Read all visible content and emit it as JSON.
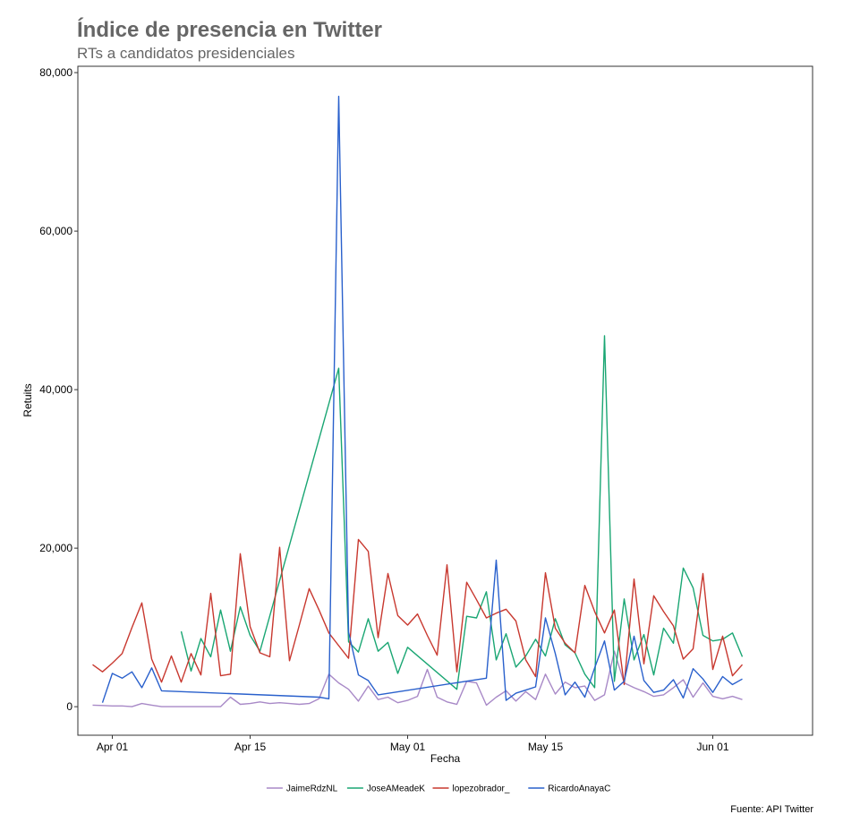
{
  "chart_data": {
    "type": "line",
    "title": "Índice de presencia en Twitter",
    "subtitle": "RTs a candidatos presidenciales",
    "xlabel": "Fecha",
    "ylabel": "Retuits",
    "caption": "Fuente: API Twitter",
    "x_ticks": [
      "Apr 01",
      "Apr 15",
      "May 01",
      "May 15",
      "Jun 01"
    ],
    "y_ticks": [
      "0",
      "20,000",
      "40,000",
      "60,000",
      "80,000"
    ],
    "ylim": [
      -3600,
      80800
    ],
    "legend_position": "bottom",
    "grid": false,
    "series": [
      {
        "name": "JaimeRdzNL",
        "color": "#a889c7",
        "x": [
          "2018-03-30",
          "2018-03-31",
          "2018-04-01",
          "2018-04-02",
          "2018-04-03",
          "2018-04-04",
          "2018-04-05",
          "2018-04-06",
          "2018-04-07",
          "2018-04-08",
          "2018-04-09",
          "2018-04-10",
          "2018-04-11",
          "2018-04-12",
          "2018-04-13",
          "2018-04-14",
          "2018-04-15",
          "2018-04-16",
          "2018-04-17",
          "2018-04-18",
          "2018-04-19",
          "2018-04-20",
          "2018-04-21",
          "2018-04-22",
          "2018-04-23",
          "2018-04-24",
          "2018-04-25",
          "2018-04-26",
          "2018-04-27",
          "2018-04-28",
          "2018-04-29",
          "2018-04-30",
          "2018-05-01",
          "2018-05-02",
          "2018-05-03",
          "2018-05-04",
          "2018-05-05",
          "2018-05-06",
          "2018-05-07",
          "2018-05-08",
          "2018-05-09",
          "2018-05-10",
          "2018-05-11",
          "2018-05-12",
          "2018-05-13",
          "2018-05-14",
          "2018-05-15",
          "2018-05-16",
          "2018-05-17",
          "2018-05-18",
          "2018-05-19",
          "2018-05-20",
          "2018-05-21",
          "2018-05-22",
          "2018-05-23",
          "2018-05-24",
          "2018-05-25",
          "2018-05-26",
          "2018-05-27",
          "2018-05-28",
          "2018-05-29",
          "2018-05-30",
          "2018-05-31",
          "2018-06-01",
          "2018-06-02",
          "2018-06-03",
          "2018-06-04"
        ],
        "values": [
          200,
          150,
          100,
          100,
          0,
          400,
          200,
          0,
          0,
          0,
          0,
          0,
          0,
          0,
          1200,
          300,
          400,
          600,
          400,
          500,
          400,
          300,
          400,
          1000,
          4100,
          3000,
          2200,
          700,
          2600,
          900,
          1200,
          500,
          800,
          1300,
          4700,
          1200,
          600,
          300,
          3200,
          3000,
          200,
          1200,
          2000,
          700,
          1900,
          900,
          4100,
          1600,
          3100,
          2400,
          2600,
          800,
          1500,
          7000,
          3000,
          2400,
          1900,
          1300,
          1500,
          2400,
          3400,
          1200,
          3000,
          1300,
          1000,
          1300,
          900
        ]
      },
      {
        "name": "JoseAMeadeK",
        "color": "#1aa673",
        "x": [
          "2018-04-08",
          "2018-04-09",
          "2018-04-10",
          "2018-04-11",
          "2018-04-12",
          "2018-04-13",
          "2018-04-14",
          "2018-04-15",
          "2018-04-16",
          "2018-04-24",
          "2018-04-25",
          "2018-04-26",
          "2018-04-27",
          "2018-04-28",
          "2018-04-29",
          "2018-04-30",
          "2018-05-01",
          "2018-05-06",
          "2018-05-07",
          "2018-05-08",
          "2018-05-09",
          "2018-05-10",
          "2018-05-11",
          "2018-05-12",
          "2018-05-13",
          "2018-05-14",
          "2018-05-15",
          "2018-05-16",
          "2018-05-17",
          "2018-05-18",
          "2018-05-19",
          "2018-05-20",
          "2018-05-21",
          "2018-05-22",
          "2018-05-23",
          "2018-05-24",
          "2018-05-25",
          "2018-05-26",
          "2018-05-27",
          "2018-05-28",
          "2018-05-29",
          "2018-05-30",
          "2018-05-31",
          "2018-06-01",
          "2018-06-02",
          "2018-06-03",
          "2018-06-04"
        ],
        "values": [
          9500,
          4500,
          8600,
          6300,
          12200,
          7000,
          12600,
          9000,
          7000,
          42700,
          8200,
          6900,
          11100,
          7000,
          8100,
          4200,
          7500,
          2200,
          11400,
          11200,
          14500,
          5900,
          9200,
          5000,
          6400,
          8500,
          6400,
          11100,
          7800,
          6800,
          4100,
          2400,
          46800,
          3200,
          13600,
          5900,
          9100,
          4000,
          9900,
          8000,
          17500,
          15000,
          9000,
          8300,
          8500,
          9300,
          6300
        ]
      },
      {
        "name": "lopezobrador_",
        "color": "#c8382f",
        "x": [
          "2018-03-30",
          "2018-03-31",
          "2018-04-01",
          "2018-04-02",
          "2018-04-03",
          "2018-04-04",
          "2018-04-05",
          "2018-04-06",
          "2018-04-07",
          "2018-04-08",
          "2018-04-09",
          "2018-04-10",
          "2018-04-11",
          "2018-04-12",
          "2018-04-13",
          "2018-04-14",
          "2018-04-15",
          "2018-04-16",
          "2018-04-17",
          "2018-04-18",
          "2018-04-19",
          "2018-04-20",
          "2018-04-21",
          "2018-04-22",
          "2018-04-23",
          "2018-04-24",
          "2018-04-25",
          "2018-04-26",
          "2018-04-27",
          "2018-04-28",
          "2018-04-29",
          "2018-04-30",
          "2018-05-01",
          "2018-05-02",
          "2018-05-03",
          "2018-05-04",
          "2018-05-05",
          "2018-05-06",
          "2018-05-07",
          "2018-05-08",
          "2018-05-09",
          "2018-05-10",
          "2018-05-11",
          "2018-05-12",
          "2018-05-13",
          "2018-05-14",
          "2018-05-15",
          "2018-05-16",
          "2018-05-17",
          "2018-05-18",
          "2018-05-19",
          "2018-05-20",
          "2018-05-21",
          "2018-05-22",
          "2018-05-23",
          "2018-05-24",
          "2018-05-25",
          "2018-05-26",
          "2018-05-27",
          "2018-05-28",
          "2018-05-29",
          "2018-05-30",
          "2018-05-31",
          "2018-06-01",
          "2018-06-02",
          "2018-06-03",
          "2018-06-04"
        ],
        "values": [
          5300,
          4400,
          5500,
          6700,
          10000,
          13100,
          6000,
          3100,
          6400,
          3100,
          6700,
          4000,
          14300,
          3900,
          4100,
          19300,
          10100,
          6800,
          6300,
          20100,
          5800,
          10300,
          14900,
          12200,
          9300,
          7700,
          6100,
          21100,
          19600,
          8700,
          16800,
          11500,
          10300,
          11700,
          9000,
          6500,
          17900,
          4400,
          15700,
          13500,
          11200,
          11800,
          12300,
          10800,
          5900,
          3800,
          16900,
          9900,
          8000,
          6800,
          15300,
          12000,
          9300,
          12200,
          2800,
          16100,
          5400,
          14000,
          12000,
          10200,
          6000,
          7300,
          16800,
          4700,
          8900,
          3900,
          5300
        ]
      },
      {
        "name": "RicardoAnayaC",
        "color": "#2960cc",
        "x": [
          "2018-03-31",
          "2018-04-01",
          "2018-04-02",
          "2018-04-03",
          "2018-04-04",
          "2018-04-05",
          "2018-04-06",
          "2018-04-22",
          "2018-04-23",
          "2018-04-24",
          "2018-04-25",
          "2018-04-26",
          "2018-04-27",
          "2018-04-28",
          "2018-05-09",
          "2018-05-10",
          "2018-05-11",
          "2018-05-12",
          "2018-05-13",
          "2018-05-14",
          "2018-05-15",
          "2018-05-16",
          "2018-05-17",
          "2018-05-18",
          "2018-05-19",
          "2018-05-20",
          "2018-05-21",
          "2018-05-22",
          "2018-05-23",
          "2018-05-24",
          "2018-05-25",
          "2018-05-26",
          "2018-05-27",
          "2018-05-28",
          "2018-05-29",
          "2018-05-30",
          "2018-05-31",
          "2018-06-01",
          "2018-06-02",
          "2018-06-03",
          "2018-06-04"
        ],
        "values": [
          500,
          4200,
          3600,
          4400,
          2400,
          4900,
          2000,
          1200,
          1000,
          77000,
          9400,
          4000,
          3300,
          1500,
          3600,
          18500,
          800,
          1700,
          2100,
          2500,
          11200,
          6700,
          1500,
          3100,
          1200,
          4900,
          8300,
          2100,
          3200,
          8900,
          3300,
          1800,
          2100,
          3400,
          1100,
          4800,
          3500,
          1800,
          3800,
          2800,
          3500
        ]
      }
    ]
  }
}
